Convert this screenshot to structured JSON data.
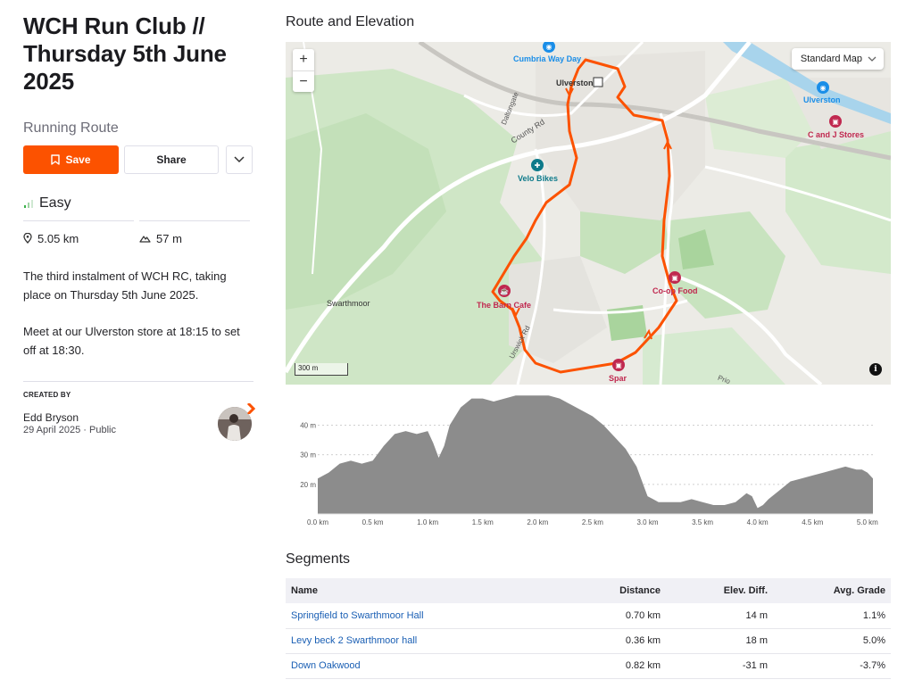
{
  "title": "WCH Run Club // Thursday 5th June 2025",
  "route_type": "Running Route",
  "actions": {
    "save": "Save",
    "share": "Share"
  },
  "difficulty": "Easy",
  "stats": {
    "distance": "5.05 km",
    "elevation": "57 m"
  },
  "description": [
    "The third instalment of WCH RC, taking place on Thursday 5th June 2025.",
    "Meet at our Ulverston store at 18:15 to set off at 18:30."
  ],
  "created_by": {
    "label": "CREATED BY",
    "name": "Edd Bryson",
    "date": "29 April 2025",
    "visibility": "Public"
  },
  "route_section_title": "Route and Elevation",
  "map": {
    "style_label": "Standard Map",
    "zoom_in": "+",
    "zoom_out": "−",
    "scale": "300 m",
    "info": "i",
    "pois": {
      "cumbria": "Cumbria Way Day",
      "ulverston_station": "Ulverston",
      "cj_stores": "C and J Stores",
      "velo_bikes": "Velo Bikes",
      "barn_cafe": "The Barn Cafe",
      "coop": "Co-op Food",
      "spar": "Spar"
    },
    "labels": {
      "ulverston": "Ulverston",
      "swarthmoor": "Swarthmoor",
      "county_rd": "County Rd",
      "daltongate": "Daltongate",
      "urswick_rd": "Urswick Rd",
      "prio": "Prio"
    },
    "colors": {
      "route": "#fc5200",
      "shop": "#c0284f",
      "bike": "#0e7a8a",
      "station": "#1a8ee8"
    },
    "icons": [
      "plus-icon",
      "minus-icon",
      "chevron-down-icon",
      "info-icon",
      "shop-icon",
      "cafe-icon",
      "bike-icon",
      "camera-icon",
      "arrow-icon"
    ]
  },
  "elevation_chart": {
    "type": "area",
    "x_ticks": [
      "0.0 km",
      "0.5 km",
      "1.0 km",
      "1.5 km",
      "2.0 km",
      "2.5 km",
      "3.0 km",
      "3.5 km",
      "4.0 km",
      "4.5 km",
      "5.0 km"
    ],
    "y_ticks": [
      "20 m",
      "30 m",
      "40 m"
    ]
  },
  "chart_data": {
    "type": "area",
    "xlabel": "",
    "ylabel": "",
    "xlim": [
      0,
      5.05
    ],
    "ylim": [
      10,
      51
    ],
    "x": [
      0,
      0.1,
      0.2,
      0.3,
      0.4,
      0.5,
      0.6,
      0.7,
      0.8,
      0.9,
      1.0,
      1.05,
      1.1,
      1.15,
      1.2,
      1.3,
      1.4,
      1.5,
      1.6,
      1.7,
      1.8,
      1.9,
      2.0,
      2.1,
      2.2,
      2.3,
      2.4,
      2.5,
      2.6,
      2.7,
      2.8,
      2.9,
      3.0,
      3.05,
      3.1,
      3.2,
      3.3,
      3.4,
      3.5,
      3.6,
      3.7,
      3.8,
      3.9,
      3.95,
      4.0,
      4.05,
      4.1,
      4.2,
      4.3,
      4.4,
      4.5,
      4.6,
      4.7,
      4.8,
      4.9,
      4.95,
      5.0,
      5.05
    ],
    "y": [
      22,
      24,
      27,
      28,
      27,
      28,
      33,
      37,
      38,
      37,
      38,
      34,
      29,
      33,
      40,
      46,
      49,
      49,
      48,
      49,
      50,
      50,
      50,
      50,
      49,
      47,
      45,
      43,
      40,
      36,
      32,
      26,
      16,
      15,
      14,
      14,
      14,
      15,
      14,
      13,
      13,
      14,
      17,
      16,
      12,
      13,
      15,
      18,
      21,
      22,
      23,
      24,
      25,
      26,
      25,
      25,
      24,
      22
    ]
  },
  "segments_title": "Segments",
  "segments": {
    "headers": {
      "name": "Name",
      "distance": "Distance",
      "elev_diff": "Elev. Diff.",
      "grade": "Avg. Grade"
    },
    "rows": [
      {
        "name": "Springfield to Swarthmoor Hall",
        "distance": "0.70 km",
        "elev_diff": "14 m",
        "grade": "1.1%"
      },
      {
        "name": "Levy beck 2 Swarthmoor hall",
        "distance": "0.36 km",
        "elev_diff": "18 m",
        "grade": "5.0%"
      },
      {
        "name": "Down Oakwood",
        "distance": "0.82 km",
        "elev_diff": "-31 m",
        "grade": "-3.7%"
      }
    ]
  }
}
